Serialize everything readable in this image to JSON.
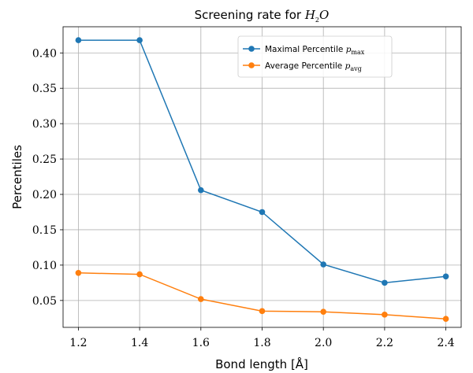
{
  "chart_data": {
    "type": "line",
    "title": "Screening rate for H₂O",
    "title_prefix": "Screening rate for ",
    "title_math": "H",
    "title_sub": "2",
    "title_math_tail": "O",
    "xlabel": "Bond length [Å]",
    "ylabel": "Percentiles",
    "x": [
      1.2,
      1.4,
      1.6,
      1.8,
      2.0,
      2.2,
      2.4
    ],
    "xlim": [
      1.15,
      2.45
    ],
    "ylim": [
      0.012,
      0.437
    ],
    "xticks": [
      "1.2",
      "1.4",
      "1.6",
      "1.8",
      "2.0",
      "2.2",
      "2.4"
    ],
    "yticks": [
      "0.05",
      "0.10",
      "0.15",
      "0.20",
      "0.25",
      "0.30",
      "0.35",
      "0.40"
    ],
    "grid": true,
    "legend_position": "top-right",
    "series": [
      {
        "name": "Maximal Percentile p_max",
        "legend_text": "Maximal Percentile ",
        "legend_math": "p",
        "legend_sub": "max",
        "color": "#1f77b4",
        "values": [
          0.418,
          0.418,
          0.206,
          0.175,
          0.101,
          0.075,
          0.084
        ]
      },
      {
        "name": "Average Percentile p_avg",
        "legend_text": "Average Percentile ",
        "legend_math": "p",
        "legend_sub": "avg",
        "color": "#ff7f0e",
        "values": [
          0.089,
          0.087,
          0.052,
          0.035,
          0.034,
          0.03,
          0.024
        ]
      }
    ]
  }
}
